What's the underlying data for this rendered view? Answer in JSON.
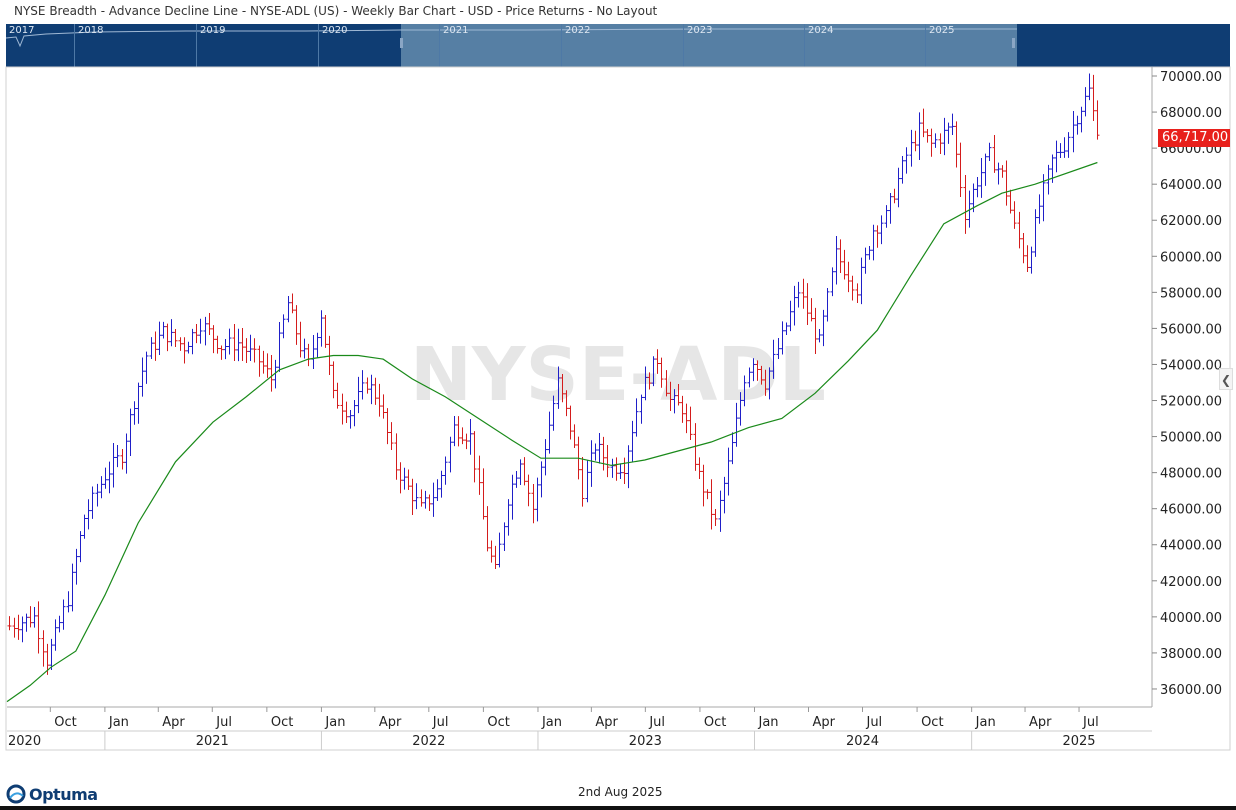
{
  "header": {
    "title": "NYSE Breadth - Advance Decline Line - NYSE-ADL (US) - Weekly Bar Chart - USD - Price Returns - No Layout"
  },
  "navigator": {
    "years": [
      "2017",
      "2018",
      "2019",
      "2020",
      "2021",
      "2022",
      "2023",
      "2024",
      "2025"
    ]
  },
  "watermark": "NYSE-ADL",
  "price_tag": "66,717.00",
  "footer": {
    "brand": "Optuma",
    "date": "2nd Aug 2025"
  },
  "colors": {
    "up_bar": "#1f1fc8",
    "down_bar": "#d41c1c",
    "moving_average": "#1a8a1a",
    "navigator_bg": "#0f3d73",
    "navigator_window": "#567fa4",
    "price_tag": "#e8201c"
  },
  "chart_data": {
    "type": "bar",
    "title": "",
    "xlabel": "",
    "ylabel": "",
    "ylim": [
      35000,
      70500
    ],
    "y_ticks": [
      "70000.00",
      "68000.00",
      "66000.00",
      "64000.00",
      "62000.00",
      "60000.00",
      "58000.00",
      "56000.00",
      "54000.00",
      "52000.00",
      "50000.00",
      "48000.00",
      "46000.00",
      "44000.00",
      "42000.00",
      "40000.00",
      "38000.00",
      "36000.00"
    ],
    "x_month_ticks": [
      {
        "label": "Oct",
        "date": "2020-10-01"
      },
      {
        "label": "Jan",
        "date": "2021-01-01"
      },
      {
        "label": "Apr",
        "date": "2021-04-01"
      },
      {
        "label": "Jul",
        "date": "2021-07-01"
      },
      {
        "label": "Oct",
        "date": "2021-10-01"
      },
      {
        "label": "Jan",
        "date": "2022-01-01"
      },
      {
        "label": "Apr",
        "date": "2022-04-01"
      },
      {
        "label": "Jul",
        "date": "2022-07-01"
      },
      {
        "label": "Oct",
        "date": "2022-10-01"
      },
      {
        "label": "Jan",
        "date": "2023-01-01"
      },
      {
        "label": "Apr",
        "date": "2023-04-01"
      },
      {
        "label": "Jul",
        "date": "2023-07-01"
      },
      {
        "label": "Oct",
        "date": "2023-10-01"
      },
      {
        "label": "Jan",
        "date": "2024-01-01"
      },
      {
        "label": "Apr",
        "date": "2024-04-01"
      },
      {
        "label": "Jul",
        "date": "2024-07-01"
      },
      {
        "label": "Oct",
        "date": "2024-10-01"
      },
      {
        "label": "Jan",
        "date": "2025-01-01"
      },
      {
        "label": "Apr",
        "date": "2025-04-01"
      },
      {
        "label": "Jul",
        "date": "2025-07-01"
      }
    ],
    "x_year_ticks": [
      {
        "label": "2020",
        "date": "2020-07-20"
      },
      {
        "label": "2021",
        "date": "2021-07-01"
      },
      {
        "label": "2022",
        "date": "2022-07-01"
      },
      {
        "label": "2023",
        "date": "2023-07-01"
      },
      {
        "label": "2024",
        "date": "2024-07-01"
      },
      {
        "label": "2025",
        "date": "2025-07-01"
      }
    ],
    "x_range": [
      "2020-07-20",
      "2025-11-01"
    ],
    "weekly_close_anchors": [
      [
        "2020-07-24",
        39500
      ],
      [
        "2020-09-04",
        40000
      ],
      [
        "2020-09-25",
        37600
      ],
      [
        "2020-10-30",
        41000
      ],
      [
        "2020-11-27",
        45500
      ],
      [
        "2020-12-31",
        47800
      ],
      [
        "2021-01-29",
        49000
      ],
      [
        "2021-02-19",
        52000
      ],
      [
        "2021-03-12",
        54500
      ],
      [
        "2021-04-09",
        55800
      ],
      [
        "2021-05-14",
        55000
      ],
      [
        "2021-06-11",
        56300
      ],
      [
        "2021-07-16",
        55000
      ],
      [
        "2021-08-13",
        55200
      ],
      [
        "2021-09-17",
        54200
      ],
      [
        "2021-10-08",
        53200
      ],
      [
        "2021-11-05",
        57400
      ],
      [
        "2021-11-26",
        55000
      ],
      [
        "2021-12-10",
        54000
      ],
      [
        "2021-12-31",
        56800
      ],
      [
        "2022-01-21",
        52200
      ],
      [
        "2022-02-18",
        51300
      ],
      [
        "2022-03-18",
        53000
      ],
      [
        "2022-04-08",
        52000
      ],
      [
        "2022-05-06",
        48300
      ],
      [
        "2022-06-17",
        46000
      ],
      [
        "2022-07-15",
        47000
      ],
      [
        "2022-08-12",
        50500
      ],
      [
        "2022-09-09",
        50000
      ],
      [
        "2022-10-07",
        44000
      ],
      [
        "2022-10-21",
        42500
      ],
      [
        "2022-11-11",
        46600
      ],
      [
        "2022-12-02",
        48800
      ],
      [
        "2022-12-23",
        46000
      ],
      [
        "2023-01-13",
        49500
      ],
      [
        "2023-02-03",
        53000
      ],
      [
        "2023-02-24",
        50500
      ],
      [
        "2023-03-17",
        47000
      ],
      [
        "2023-04-07",
        49500
      ],
      [
        "2023-05-05",
        48300
      ],
      [
        "2023-05-26",
        48400
      ],
      [
        "2023-06-23",
        52500
      ],
      [
        "2023-07-21",
        54300
      ],
      [
        "2023-08-11",
        52000
      ],
      [
        "2023-09-01",
        51600
      ],
      [
        "2023-09-29",
        47800
      ],
      [
        "2023-10-27",
        45200
      ],
      [
        "2023-11-24",
        49500
      ],
      [
        "2023-12-15",
        53300
      ],
      [
        "2023-12-29",
        54300
      ],
      [
        "2024-01-19",
        53000
      ],
      [
        "2024-02-16",
        55500
      ],
      [
        "2024-03-15",
        58100
      ],
      [
        "2024-04-19",
        55200
      ],
      [
        "2024-05-17",
        60100
      ],
      [
        "2024-06-21",
        58200
      ],
      [
        "2024-07-19",
        61500
      ],
      [
        "2024-08-09",
        62200
      ],
      [
        "2024-09-13",
        65600
      ],
      [
        "2024-10-04",
        67000
      ],
      [
        "2024-10-25",
        66200
      ],
      [
        "2024-11-29",
        67200
      ],
      [
        "2024-12-20",
        62400
      ],
      [
        "2025-01-10",
        64200
      ],
      [
        "2025-01-31",
        65600
      ],
      [
        "2025-02-21",
        64500
      ],
      [
        "2025-03-14",
        61600
      ],
      [
        "2025-04-04",
        59600
      ],
      [
        "2025-04-25",
        62800
      ],
      [
        "2025-05-16",
        65300
      ],
      [
        "2025-06-06",
        66200
      ],
      [
        "2025-06-27",
        67800
      ],
      [
        "2025-07-18",
        69200
      ],
      [
        "2025-08-01",
        66717
      ]
    ],
    "moving_average": [
      [
        "2020-07-20",
        35300
      ],
      [
        "2020-08-28",
        36200
      ],
      [
        "2020-10-02",
        37200
      ],
      [
        "2020-11-13",
        38100
      ],
      [
        "2021-01-01",
        41200
      ],
      [
        "2021-02-26",
        45200
      ],
      [
        "2021-04-30",
        48600
      ],
      [
        "2021-07-02",
        50800
      ],
      [
        "2021-08-27",
        52200
      ],
      [
        "2021-10-22",
        53700
      ],
      [
        "2021-12-10",
        54300
      ],
      [
        "2022-01-21",
        54500
      ],
      [
        "2022-03-04",
        54500
      ],
      [
        "2022-04-15",
        54300
      ],
      [
        "2022-06-03",
        53200
      ],
      [
        "2022-07-29",
        52200
      ],
      [
        "2022-09-23",
        51000
      ],
      [
        "2022-11-18",
        49800
      ],
      [
        "2023-01-06",
        48800
      ],
      [
        "2023-03-10",
        48800
      ],
      [
        "2023-05-05",
        48400
      ],
      [
        "2023-06-30",
        48700
      ],
      [
        "2023-08-25",
        49200
      ],
      [
        "2023-10-20",
        49700
      ],
      [
        "2023-12-22",
        50500
      ],
      [
        "2024-02-16",
        51000
      ],
      [
        "2024-04-12",
        52400
      ],
      [
        "2024-06-07",
        54200
      ],
      [
        "2024-07-26",
        55900
      ],
      [
        "2024-09-20",
        58900
      ],
      [
        "2024-11-15",
        61800
      ],
      [
        "2025-01-10",
        62800
      ],
      [
        "2025-02-21",
        63500
      ],
      [
        "2025-04-18",
        64000
      ],
      [
        "2025-08-01",
        65200
      ]
    ]
  }
}
